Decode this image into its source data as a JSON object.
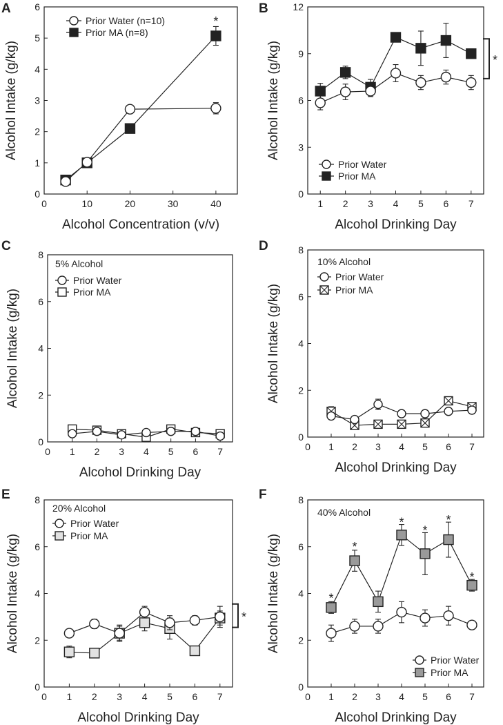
{
  "figure": {
    "colors": {
      "ink": "#222222",
      "black_fill": "#222222",
      "gray_fill": "#9a9a9a",
      "light_fill": "#e2e2e2",
      "white_fill": "#ffffff"
    }
  },
  "chart_data": [
    {
      "id": "A",
      "panel_letter": "A",
      "type": "line",
      "title": "",
      "xlabel": "Alcohol Concentration (v/v)",
      "ylabel": "Alcohol Intake (g/kg)",
      "xlim": [
        0,
        45
      ],
      "ylim": [
        0,
        6
      ],
      "xticks": [
        0,
        10,
        20,
        30,
        40
      ],
      "yticks": [
        0,
        1,
        2,
        3,
        4,
        5,
        6
      ],
      "x": [
        5,
        10,
        20,
        40
      ],
      "series": [
        {
          "name": "Prior Water (n=10)",
          "marker": "circle",
          "fill": "white",
          "values": [
            0.4,
            1.02,
            2.72,
            2.75
          ],
          "err": [
            0.05,
            0.06,
            0.1,
            0.18
          ]
        },
        {
          "name": "Prior MA (n=8)",
          "marker": "square",
          "fill": "black",
          "values": [
            0.45,
            1.0,
            2.1,
            5.07
          ],
          "err": [
            0.06,
            0.08,
            0.08,
            0.3
          ]
        }
      ],
      "annotations": [
        {
          "text": "*",
          "x": 40,
          "y": 5.58
        }
      ]
    },
    {
      "id": "B",
      "panel_letter": "B",
      "type": "line",
      "title": "",
      "xlabel": "Alcohol Drinking Day",
      "ylabel": "Alcohol Intake (g/kg)",
      "xlim": [
        0.5,
        7.5
      ],
      "ylim": [
        0,
        12
      ],
      "xticks": [
        1,
        2,
        3,
        4,
        5,
        6,
        7
      ],
      "yticks": [
        0,
        3,
        6,
        9,
        12
      ],
      "x": [
        1,
        2,
        3,
        4,
        5,
        6,
        7
      ],
      "series": [
        {
          "name": "Prior Water",
          "marker": "circle",
          "fill": "white",
          "values": [
            5.85,
            6.55,
            6.6,
            7.75,
            7.15,
            7.5,
            7.15
          ],
          "err": [
            0.45,
            0.5,
            0.35,
            0.55,
            0.45,
            0.45,
            0.45
          ]
        },
        {
          "name": "Prior MA",
          "marker": "square",
          "fill": "black",
          "values": [
            6.6,
            7.8,
            6.85,
            10.05,
            9.35,
            9.85,
            9.0
          ],
          "err": [
            0.5,
            0.4,
            0.5,
            0.3,
            1.1,
            1.1,
            0.3
          ]
        }
      ],
      "significance": {
        "text": "*",
        "from": 7.4,
        "to": 9.95
      }
    },
    {
      "id": "C",
      "panel_letter": "C",
      "type": "line",
      "title": "5% Alcohol",
      "xlabel": "Alcohol Drinking Day",
      "ylabel": "Alcohol Intake (g/kg)",
      "xlim": [
        0,
        7.5
      ],
      "ylim": [
        0,
        8
      ],
      "xticks": [
        0,
        1,
        2,
        3,
        4,
        5,
        6,
        7
      ],
      "yticks": [
        0,
        2,
        4,
        6,
        8
      ],
      "x": [
        1,
        2,
        3,
        4,
        5,
        6,
        7
      ],
      "series": [
        {
          "name": "Prior Water",
          "marker": "circle",
          "fill": "white",
          "values": [
            0.35,
            0.45,
            0.3,
            0.4,
            0.45,
            0.45,
            0.25
          ],
          "err": [
            0.12,
            0.1,
            0.12,
            0.12,
            0.12,
            0.12,
            0.08
          ]
        },
        {
          "name": "Prior MA",
          "marker": "square",
          "fill": "white",
          "values": [
            0.55,
            0.5,
            0.35,
            0.2,
            0.55,
            0.4,
            0.35
          ],
          "err": [
            0.12,
            0.1,
            0.1,
            0.2,
            0.12,
            0.12,
            0.12
          ]
        }
      ]
    },
    {
      "id": "D",
      "panel_letter": "D",
      "type": "line",
      "title": "10% Alcohol",
      "xlabel": "Alcohol Drinking Day",
      "ylabel": "Alcohol Intake (g/kg)",
      "xlim": [
        0,
        7.5
      ],
      "ylim": [
        0,
        8
      ],
      "xticks": [
        0,
        1,
        2,
        3,
        4,
        5,
        6,
        7
      ],
      "yticks": [
        0,
        2,
        4,
        6,
        8
      ],
      "x": [
        1,
        2,
        3,
        4,
        5,
        6,
        7
      ],
      "series": [
        {
          "name": "Prior Water",
          "marker": "circle",
          "fill": "white",
          "values": [
            0.9,
            0.75,
            1.4,
            1.0,
            1.0,
            1.1,
            1.15
          ],
          "err": [
            0.12,
            0.12,
            0.22,
            0.12,
            0.12,
            0.12,
            0.15
          ]
        },
        {
          "name": "Prior MA",
          "marker": "xsquare",
          "fill": "white",
          "values": [
            1.1,
            0.5,
            0.55,
            0.55,
            0.6,
            1.55,
            1.3
          ],
          "err": [
            0.2,
            0.12,
            0.15,
            0.15,
            0.1,
            0.1,
            0.1
          ]
        }
      ]
    },
    {
      "id": "E",
      "panel_letter": "E",
      "type": "line",
      "title": "20% Alcohol",
      "xlabel": "Alcohol Drinking Day",
      "ylabel": "Alcohol Intake (g/kg)",
      "xlim": [
        0,
        7.5
      ],
      "ylim": [
        0,
        8
      ],
      "xticks": [
        0,
        1,
        2,
        3,
        4,
        5,
        6,
        7
      ],
      "yticks": [
        0,
        2,
        4,
        6,
        8
      ],
      "x": [
        1,
        2,
        3,
        4,
        5,
        6,
        7
      ],
      "series": [
        {
          "name": "Prior Water",
          "marker": "circle",
          "fill": "white",
          "values": [
            2.3,
            2.7,
            2.3,
            3.2,
            2.75,
            2.85,
            3.0
          ],
          "err": [
            0.15,
            0.2,
            0.3,
            0.25,
            0.3,
            0.2,
            0.45
          ]
        },
        {
          "name": "Prior MA",
          "marker": "square",
          "fill": "light",
          "values": [
            1.5,
            1.45,
            2.3,
            2.75,
            2.5,
            1.55,
            2.95
          ],
          "err": [
            0.25,
            0.12,
            0.35,
            0.35,
            0.45,
            0.2,
            0.3
          ]
        }
      ],
      "significance": {
        "text": "*",
        "from": 2.55,
        "to": 3.55
      }
    },
    {
      "id": "F",
      "panel_letter": "F",
      "type": "line",
      "title": "40% Alcohol",
      "xlabel": "Alcohol Drinking Day",
      "ylabel": "Alcohol Intake (g/kg)",
      "xlim": [
        0,
        7.5
      ],
      "ylim": [
        0,
        8
      ],
      "xticks": [
        0,
        1,
        2,
        3,
        4,
        5,
        6,
        7
      ],
      "yticks": [
        0,
        2,
        4,
        6,
        8
      ],
      "x": [
        1,
        2,
        3,
        4,
        5,
        6,
        7
      ],
      "series": [
        {
          "name": "Prior Water",
          "marker": "circle",
          "fill": "white",
          "values": [
            2.3,
            2.6,
            2.6,
            3.2,
            2.95,
            3.05,
            2.65
          ],
          "err": [
            0.35,
            0.3,
            0.3,
            0.45,
            0.35,
            0.4,
            0.1
          ]
        },
        {
          "name": "Prior MA",
          "marker": "square",
          "fill": "gray",
          "values": [
            3.4,
            5.4,
            3.65,
            6.5,
            5.7,
            6.3,
            4.35
          ],
          "err": [
            0.25,
            0.45,
            0.45,
            0.45,
            0.9,
            0.75,
            0.25
          ]
        }
      ],
      "annotations": [
        {
          "text": "*",
          "x": 1,
          "y": 3.85
        },
        {
          "text": "*",
          "x": 2,
          "y": 6.05
        },
        {
          "text": "*",
          "x": 4,
          "y": 7.1
        },
        {
          "text": "*",
          "x": 5,
          "y": 6.75
        },
        {
          "text": "*",
          "x": 6,
          "y": 7.2
        },
        {
          "text": "*",
          "x": 7,
          "y": 4.75
        }
      ]
    }
  ]
}
